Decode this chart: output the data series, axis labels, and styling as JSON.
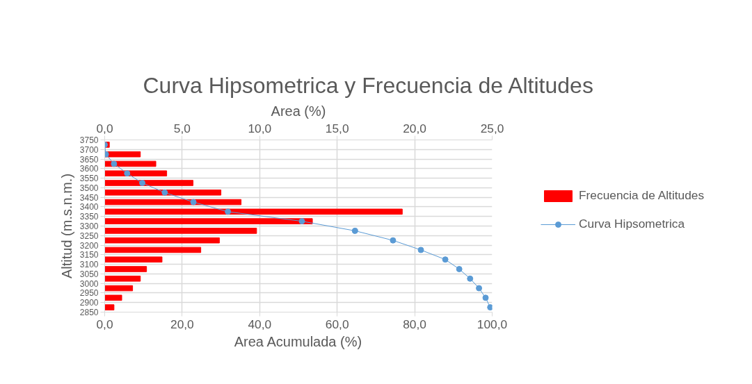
{
  "chart_data": {
    "type": "bar",
    "orientation": "horizontal",
    "title": "Curva Hipsometrica y Frecuencia de Altitudes",
    "xlabel": "Area Acumulada (%)",
    "x2label": "Area (%)",
    "ylabel": "Altitud (m.s.n.m.)",
    "x": [
      3725,
      3675,
      3625,
      3575,
      3525,
      3475,
      3425,
      3375,
      3325,
      3275,
      3225,
      3175,
      3125,
      3075,
      3025,
      2975,
      2925,
      2875
    ],
    "series": [
      {
        "name": "Frecuencia de Altitudes",
        "axis": "x2",
        "color": "#ff0000",
        "values": [
          0.3,
          2.3,
          3.3,
          4.0,
          5.7,
          7.5,
          8.8,
          19.2,
          13.4,
          9.8,
          7.4,
          6.2,
          3.7,
          2.7,
          2.3,
          1.8,
          1.1,
          0.6
        ]
      },
      {
        "name": "Curva Hipsometrica",
        "type": "line",
        "marker": "circle",
        "color": "#5b9bd5",
        "values": [
          0.0,
          0.3,
          2.4,
          5.8,
          9.7,
          15.5,
          22.9,
          31.8,
          50.9,
          64.6,
          74.4,
          81.6,
          87.9,
          91.5,
          94.3,
          96.6,
          98.3,
          99.5
        ]
      }
    ],
    "xlim": [
      0,
      100
    ],
    "xticks": [
      {
        "value": 0,
        "label": "0,0"
      },
      {
        "value": 20,
        "label": "20,0"
      },
      {
        "value": 40,
        "label": "40,0"
      },
      {
        "value": 60,
        "label": "60,0"
      },
      {
        "value": 80,
        "label": "80,0"
      },
      {
        "value": 100,
        "label": "100,0"
      }
    ],
    "x2lim": [
      0,
      25
    ],
    "x2ticks": [
      {
        "value": 0,
        "label": "0,0"
      },
      {
        "value": 5,
        "label": "5,0"
      },
      {
        "value": 10,
        "label": "10,0"
      },
      {
        "value": 15,
        "label": "15,0"
      },
      {
        "value": 20,
        "label": "20,0"
      },
      {
        "value": 25,
        "label": "25,0"
      }
    ],
    "ylim": [
      2850,
      3750
    ],
    "yticks": [
      2850,
      2900,
      2950,
      3000,
      3050,
      3100,
      3150,
      3200,
      3250,
      3300,
      3350,
      3400,
      3450,
      3500,
      3550,
      3600,
      3650,
      3700,
      3750
    ],
    "grid": true,
    "legend": "right"
  }
}
